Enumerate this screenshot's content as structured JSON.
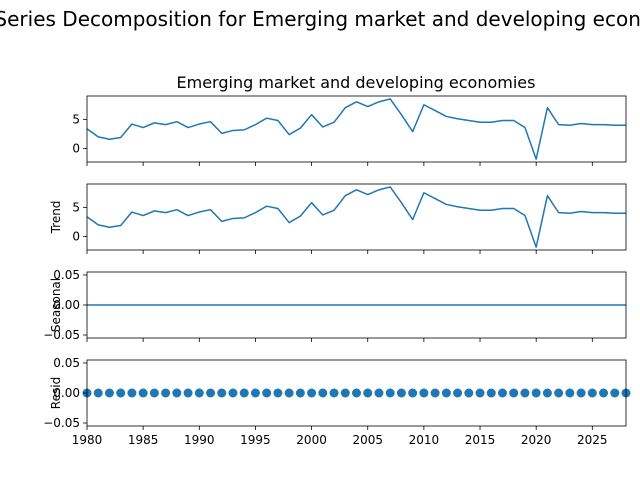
{
  "suptitle": "Time Series Decomposition for Emerging market and developing economies",
  "colors": {
    "line": "#1f77b4",
    "axis": "#000000",
    "background": "#ffffff"
  },
  "chart_data": [
    {
      "type": "line",
      "title": "Emerging market and developing economies",
      "ylabel": "",
      "x": [
        1980,
        1981,
        1982,
        1983,
        1984,
        1985,
        1986,
        1987,
        1988,
        1989,
        1990,
        1991,
        1992,
        1993,
        1994,
        1995,
        1996,
        1997,
        1998,
        1999,
        2000,
        2001,
        2002,
        2003,
        2004,
        2005,
        2006,
        2007,
        2008,
        2009,
        2010,
        2011,
        2012,
        2013,
        2014,
        2015,
        2016,
        2017,
        2018,
        2019,
        2020,
        2021,
        2022,
        2023,
        2024,
        2025,
        2026,
        2027,
        2028
      ],
      "values": [
        3.4,
        2.0,
        1.6,
        1.9,
        4.2,
        3.6,
        4.4,
        4.1,
        4.6,
        3.6,
        4.2,
        4.6,
        2.6,
        3.1,
        3.2,
        4.1,
        5.2,
        4.8,
        2.4,
        3.5,
        5.8,
        3.7,
        4.5,
        7.0,
        8.0,
        7.2,
        8.0,
        8.5,
        5.8,
        2.9,
        7.5,
        6.5,
        5.5,
        5.1,
        4.8,
        4.5,
        4.5,
        4.8,
        4.8,
        3.6,
        -1.8,
        7.0,
        4.1,
        4.0,
        4.3,
        4.1,
        4.1,
        4.0,
        4.0
      ],
      "yticks": [
        0,
        5
      ],
      "ytick_labels": [
        "0",
        "5"
      ],
      "ylim": [
        -2.3,
        9.0
      ],
      "xlim": [
        1980,
        2028
      ]
    },
    {
      "type": "line",
      "title": "",
      "ylabel": "Trend",
      "x": [
        1980,
        1981,
        1982,
        1983,
        1984,
        1985,
        1986,
        1987,
        1988,
        1989,
        1990,
        1991,
        1992,
        1993,
        1994,
        1995,
        1996,
        1997,
        1998,
        1999,
        2000,
        2001,
        2002,
        2003,
        2004,
        2005,
        2006,
        2007,
        2008,
        2009,
        2010,
        2011,
        2012,
        2013,
        2014,
        2015,
        2016,
        2017,
        2018,
        2019,
        2020,
        2021,
        2022,
        2023,
        2024,
        2025,
        2026,
        2027,
        2028
      ],
      "values": [
        3.4,
        2.0,
        1.6,
        1.9,
        4.2,
        3.6,
        4.4,
        4.1,
        4.6,
        3.6,
        4.2,
        4.6,
        2.6,
        3.1,
        3.2,
        4.1,
        5.2,
        4.8,
        2.4,
        3.5,
        5.8,
        3.7,
        4.5,
        7.0,
        8.0,
        7.2,
        8.0,
        8.5,
        5.8,
        2.9,
        7.5,
        6.5,
        5.5,
        5.1,
        4.8,
        4.5,
        4.5,
        4.8,
        4.8,
        3.6,
        -1.8,
        7.0,
        4.1,
        4.0,
        4.3,
        4.1,
        4.1,
        4.0,
        4.0
      ],
      "yticks": [
        0,
        5
      ],
      "ytick_labels": [
        "0",
        "5"
      ],
      "ylim": [
        -2.3,
        9.0
      ],
      "xlim": [
        1980,
        2028
      ]
    },
    {
      "type": "line",
      "title": "",
      "ylabel": "Seasonal",
      "x": [
        1980,
        2028
      ],
      "values": [
        0.0,
        0.0
      ],
      "yticks": [
        -0.05,
        0.0,
        0.05
      ],
      "ytick_labels": [
        "−0.05",
        "0.00",
        "0.05"
      ],
      "ylim": [
        -0.055,
        0.055
      ],
      "xlim": [
        1980,
        2028
      ]
    },
    {
      "type": "scatter",
      "title": "",
      "ylabel": "Resid",
      "x": [
        1980,
        1981,
        1982,
        1983,
        1984,
        1985,
        1986,
        1987,
        1988,
        1989,
        1990,
        1991,
        1992,
        1993,
        1994,
        1995,
        1996,
        1997,
        1998,
        1999,
        2000,
        2001,
        2002,
        2003,
        2004,
        2005,
        2006,
        2007,
        2008,
        2009,
        2010,
        2011,
        2012,
        2013,
        2014,
        2015,
        2016,
        2017,
        2018,
        2019,
        2020,
        2021,
        2022,
        2023,
        2024,
        2025,
        2026,
        2027,
        2028
      ],
      "values": [
        0,
        0,
        0,
        0,
        0,
        0,
        0,
        0,
        0,
        0,
        0,
        0,
        0,
        0,
        0,
        0,
        0,
        0,
        0,
        0,
        0,
        0,
        0,
        0,
        0,
        0,
        0,
        0,
        0,
        0,
        0,
        0,
        0,
        0,
        0,
        0,
        0,
        0,
        0,
        0,
        0,
        0,
        0,
        0,
        0,
        0,
        0,
        0,
        0
      ],
      "yticks": [
        -0.05,
        0.0,
        0.05
      ],
      "ytick_labels": [
        "−0.05",
        "0.00",
        "0.05"
      ],
      "ylim": [
        -0.055,
        0.055
      ],
      "xlim": [
        1980,
        2028
      ],
      "xticks": [
        1980,
        1985,
        1990,
        1995,
        2000,
        2005,
        2010,
        2015,
        2020,
        2025
      ],
      "xtick_labels": [
        "1980",
        "1985",
        "1990",
        "1995",
        "2000",
        "2005",
        "2010",
        "2015",
        "2020",
        "2025"
      ]
    }
  ]
}
